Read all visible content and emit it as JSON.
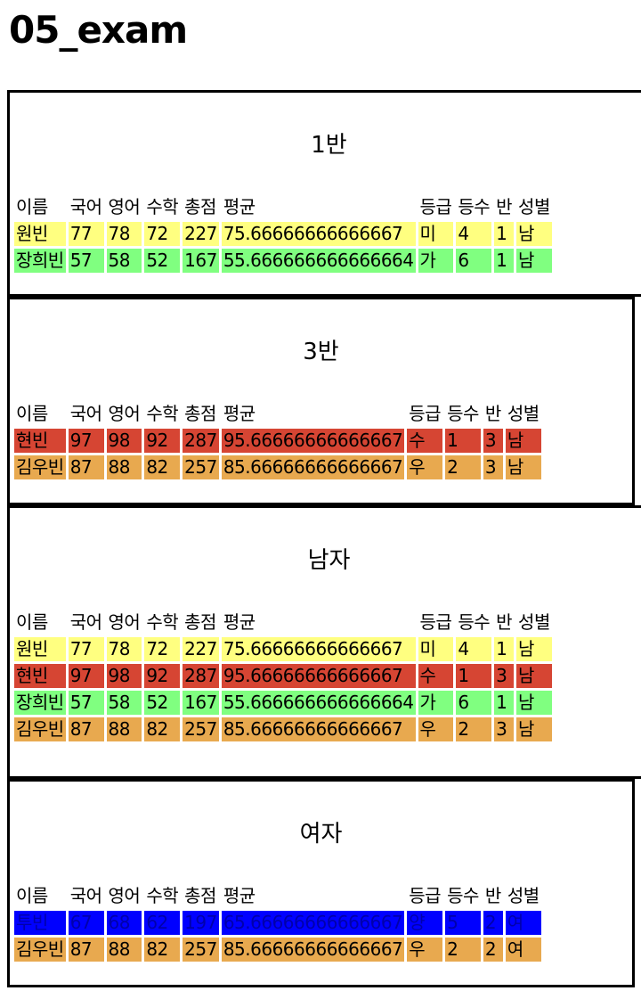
{
  "title": "05_exam",
  "headers": [
    "이름",
    "국어",
    "영어",
    "수학",
    "총점",
    "평균",
    "등급",
    "등수",
    "반",
    "성별"
  ],
  "sections": [
    {
      "caption": "1반",
      "rows": [
        {
          "cells": [
            "원빈",
            "77",
            "78",
            "72",
            "227",
            "75.66666666666667",
            "미",
            "4",
            "1",
            "남"
          ],
          "color": "yellow"
        },
        {
          "cells": [
            "장희빈",
            "57",
            "58",
            "52",
            "167",
            "55.666666666666664",
            "가",
            "6",
            "1",
            "남"
          ],
          "color": "green"
        }
      ]
    },
    {
      "caption": "3반",
      "rows": [
        {
          "cells": [
            "현빈",
            "97",
            "98",
            "92",
            "287",
            "95.66666666666667",
            "수",
            "1",
            "3",
            "남"
          ],
          "color": "red"
        },
        {
          "cells": [
            "김우빈",
            "87",
            "88",
            "82",
            "257",
            "85.66666666666667",
            "우",
            "2",
            "3",
            "남"
          ],
          "color": "orange"
        }
      ]
    },
    {
      "caption": "남자",
      "rows": [
        {
          "cells": [
            "원빈",
            "77",
            "78",
            "72",
            "227",
            "75.66666666666667",
            "미",
            "4",
            "1",
            "남"
          ],
          "color": "yellow"
        },
        {
          "cells": [
            "현빈",
            "97",
            "98",
            "92",
            "287",
            "95.66666666666667",
            "수",
            "1",
            "3",
            "남"
          ],
          "color": "red"
        },
        {
          "cells": [
            "장희빈",
            "57",
            "58",
            "52",
            "167",
            "55.666666666666664",
            "가",
            "6",
            "1",
            "남"
          ],
          "color": "green"
        },
        {
          "cells": [
            "김우빈",
            "87",
            "88",
            "82",
            "257",
            "85.66666666666667",
            "우",
            "2",
            "3",
            "남"
          ],
          "color": "orange"
        }
      ]
    },
    {
      "caption": "여자",
      "rows": [
        {
          "cells": [
            "투빈",
            "67",
            "68",
            "62",
            "197",
            "65.66666666666667",
            "양",
            "5",
            "2",
            "여"
          ],
          "color": "blue"
        },
        {
          "cells": [
            "김우빈",
            "87",
            "88",
            "82",
            "257",
            "85.66666666666667",
            "우",
            "2",
            "2",
            "여"
          ],
          "color": "orange"
        }
      ]
    }
  ]
}
